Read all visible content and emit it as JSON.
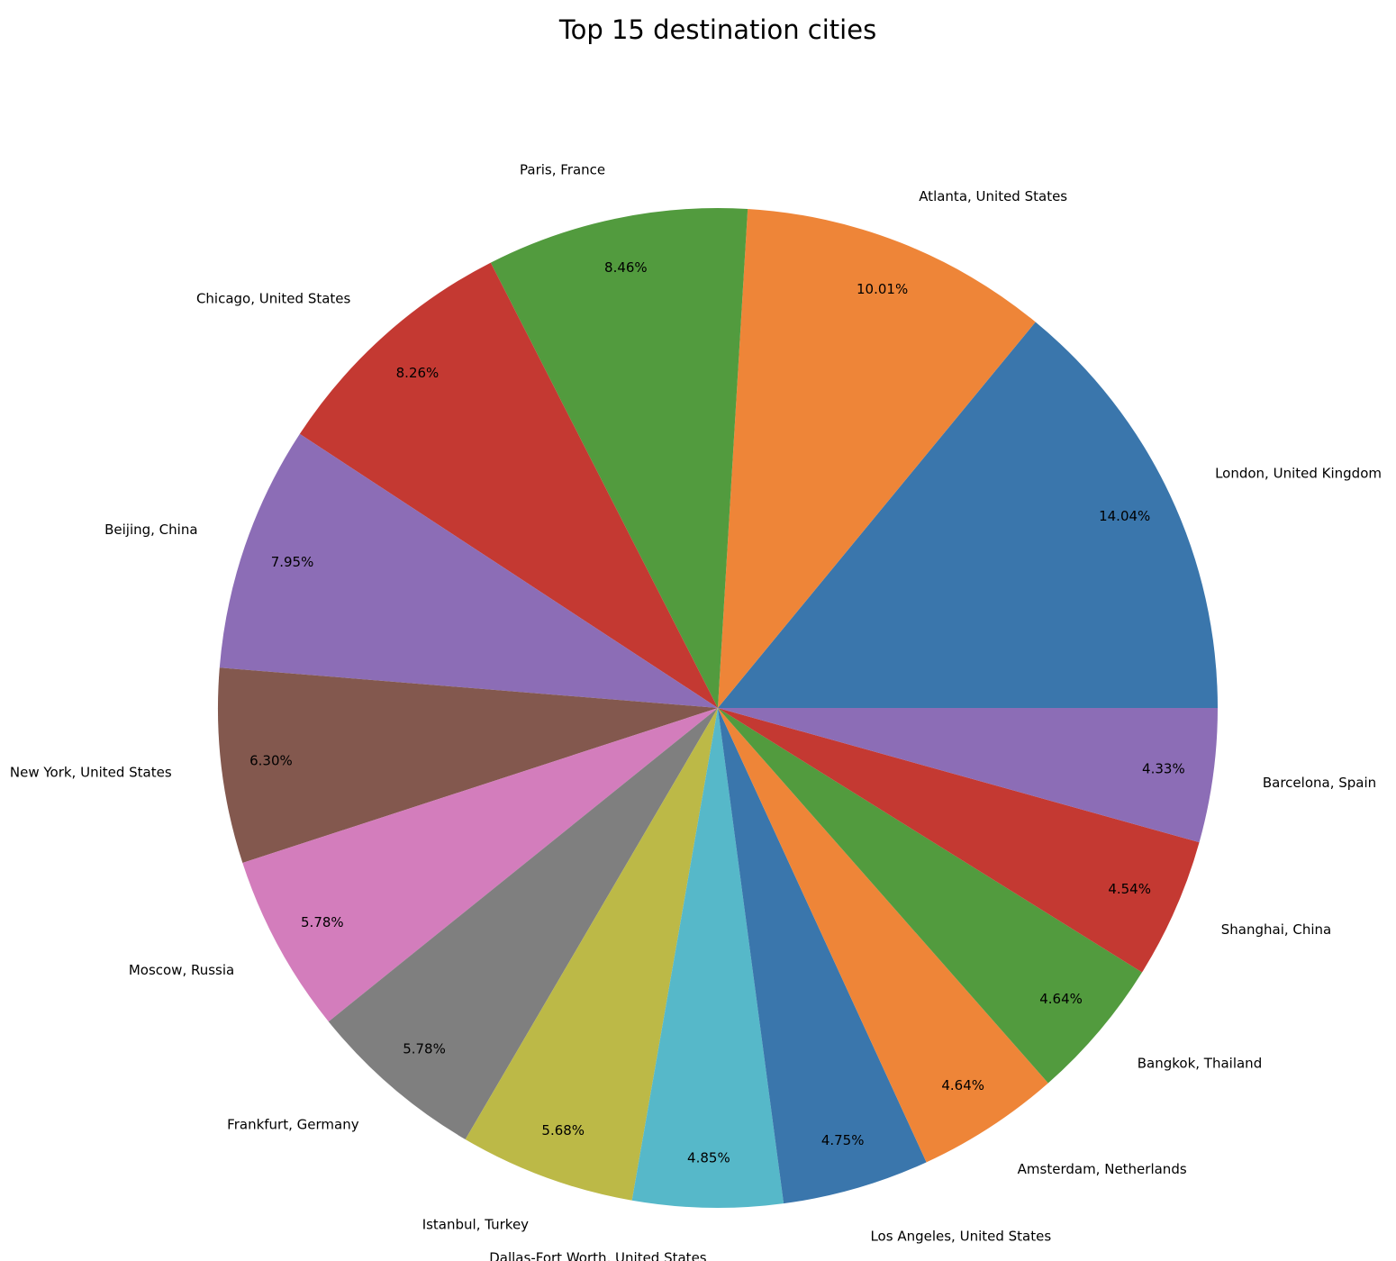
{
  "chart_data": {
    "type": "pie",
    "title": "Top 15 destination cities",
    "categories": [
      "London, United Kingdom",
      "Atlanta, United States",
      "Paris, France",
      "Chicago, United States",
      "Beijing, China",
      "New York, United States",
      "Moscow, Russia",
      "Frankfurt, Germany",
      "Istanbul, Turkey",
      "Dallas-Fort Worth, United States",
      "Los Angeles, United States",
      "Amsterdam, Netherlands",
      "Bangkok, Thailand",
      "Shanghai, China",
      "Barcelona, Spain"
    ],
    "values": [
      14.04,
      10.01,
      8.46,
      8.26,
      7.95,
      6.3,
      5.78,
      5.78,
      5.68,
      4.85,
      4.75,
      4.64,
      4.64,
      4.54,
      4.33
    ],
    "value_labels": [
      "14.04%",
      "10.01%",
      "8.46%",
      "8.26%",
      "7.95%",
      "6.30%",
      "5.78%",
      "5.78%",
      "5.68%",
      "4.85%",
      "4.75%",
      "4.64%",
      "4.64%",
      "4.54%",
      "4.33%"
    ],
    "colors": [
      "#3a76ac",
      "#ee8538",
      "#529b3e",
      "#c43932",
      "#8c6db6",
      "#83584e",
      "#d37dbc",
      "#7f7f7f",
      "#bcb947",
      "#56b8c9",
      "#3a76ac",
      "#ee8538",
      "#529b3e",
      "#c43932",
      "#8c6db6"
    ],
    "start_angle_deg": 0,
    "direction": "counterclockwise",
    "legend": "none",
    "grid": false
  }
}
